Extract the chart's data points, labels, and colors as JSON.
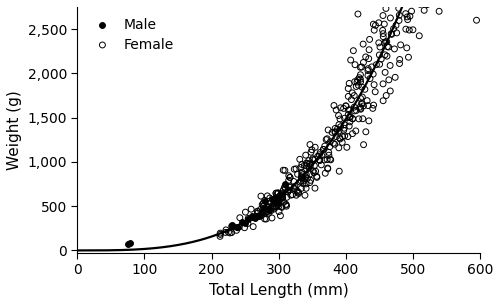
{
  "title": "",
  "xlabel": "Total Length (mm)",
  "ylabel": "Weight (g)",
  "xlim": [
    0,
    600
  ],
  "ylim": [
    -30,
    2750
  ],
  "xticks": [
    0,
    100,
    200,
    300,
    400,
    500,
    600
  ],
  "yticks": [
    0,
    500,
    1000,
    1500,
    2000,
    2500
  ],
  "ytick_labels": [
    "0",
    "500",
    "1,000",
    "1,500",
    "2,000",
    "2,500"
  ],
  "power_a": 5.5e-06,
  "power_b": 3.24,
  "bg_color": "#ffffff",
  "line_color": "#000000",
  "male_color": "#000000",
  "female_color": "#000000",
  "legend_male_label": "Male",
  "legend_female_label": "Female",
  "xlabel_fontsize": 11,
  "ylabel_fontsize": 11,
  "tick_fontsize": 10
}
